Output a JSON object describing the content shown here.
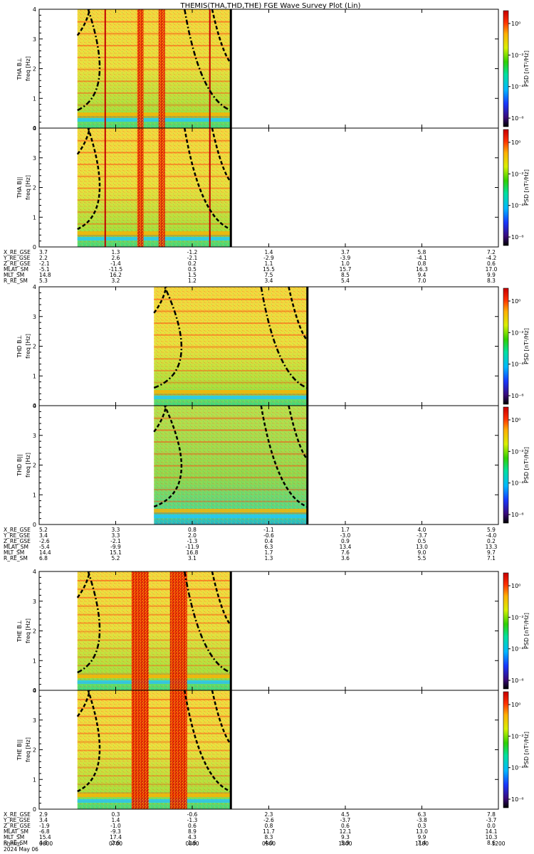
{
  "title": "THEMIS(THA,THD,THE) FGE Wave Survey Plot (Lin)",
  "chart_data": {
    "type": "heatmap",
    "date_label": "2024 May 06",
    "xlim": [
      "0600",
      "1200"
    ],
    "x_tick_labels": [
      "0600",
      "0700",
      "0800",
      "0900",
      "1000",
      "1100",
      "1200"
    ],
    "probe_blocks": [
      {
        "probe": "THA",
        "data_start": "0630",
        "data_end": "0830",
        "panels": [
          {
            "ylabel_component": "THA B⊥",
            "ylabel_unit": "freq [Hz]",
            "ylim": [
              0,
              4
            ],
            "y_ticks": [
              "0",
              "1",
              "2",
              "3",
              "4"
            ],
            "colorbar": {
              "label": "PSD [nT²/Hz]",
              "ticks": [
                "10⁰",
                "10⁻²",
                "10⁻⁴",
                "10⁻⁶"
              ]
            }
          },
          {
            "ylabel_component": "THA B||",
            "ylabel_unit": "freq [Hz]",
            "ylim": [
              0,
              4
            ],
            "y_ticks": [
              "0",
              "1",
              "2",
              "3",
              "4"
            ],
            "colorbar": {
              "label": "PSD [nT²/Hz]",
              "ticks": [
                "10⁰",
                "10⁻²",
                "10⁻⁴",
                "10⁻⁶"
              ]
            }
          }
        ],
        "ephemeris": [
          {
            "label": "X_RE_GSE",
            "values": [
              "3.7",
              "1.3",
              "-1.2",
              "1.4",
              "3.7",
              "5.8",
              "7.2"
            ]
          },
          {
            "label": "Y_RE_GSE",
            "values": [
              "2.2",
              "2.6",
              "-2.1",
              "-2.9",
              "-3.9",
              "-4.1",
              "-4.2"
            ]
          },
          {
            "label": "Z_RE_GSE",
            "values": [
              "-2.1",
              "-1.4",
              "0.2",
              "1.1",
              "1.0",
              "0.8",
              "0.6"
            ]
          },
          {
            "label": "MLAT_SM",
            "values": [
              "-5.1",
              "-11.5",
              "0.5",
              "15.5",
              "15.7",
              "16.3",
              "17.0"
            ]
          },
          {
            "label": "MLT_SM",
            "values": [
              "14.8",
              "16.2",
              "1.5",
              "7.5",
              "8.5",
              "9.4",
              "9.9"
            ]
          },
          {
            "label": "R_RE_SM",
            "values": [
              "5.3",
              "3.2",
              "1.2",
              "3.4",
              "5.4",
              "7.0",
              "8.3"
            ]
          }
        ]
      },
      {
        "probe": "THD",
        "data_start": "0730",
        "data_end": "0930",
        "panels": [
          {
            "ylabel_component": "THD B⊥",
            "ylabel_unit": "freq [Hz]",
            "ylim": [
              0,
              4
            ],
            "y_ticks": [
              "0",
              "1",
              "2",
              "3",
              "4"
            ],
            "colorbar": {
              "label": "PSD [nT²/Hz]",
              "ticks": [
                "10⁰",
                "10⁻²",
                "10⁻⁴",
                "10⁻⁶"
              ]
            }
          },
          {
            "ylabel_component": "THD B||",
            "ylabel_unit": "freq [Hz]",
            "ylim": [
              0,
              4
            ],
            "y_ticks": [
              "0",
              "1",
              "2",
              "3",
              "4"
            ],
            "colorbar": {
              "label": "PSD [nT²/Hz]",
              "ticks": [
                "10⁰",
                "10⁻²",
                "10⁻⁴",
                "10⁻⁶"
              ]
            }
          }
        ],
        "ephemeris": [
          {
            "label": "X_RE_GSE",
            "values": [
              "5.2",
              "3.3",
              "0.8",
              "-1.1",
              "1.7",
              "4.0",
              "5.9"
            ]
          },
          {
            "label": "Y_RE_GSE",
            "values": [
              "3.4",
              "3.3",
              "2.0",
              "-0.6",
              "-3.0",
              "-3.7",
              "-4.0"
            ]
          },
          {
            "label": "Z_RE_GSE",
            "values": [
              "-2.6",
              "-2.1",
              "-1.3",
              "0.4",
              "0.9",
              "0.5",
              "0.2"
            ]
          },
          {
            "label": "MLAT_SM",
            "values": [
              "-5.4",
              "-9.9",
              "-11.9",
              "6.3",
              "13.4",
              "13.0",
              "13.3"
            ]
          },
          {
            "label": "MLT_SM",
            "values": [
              "14.4",
              "15.1",
              "16.8",
              "1.7",
              "7.6",
              "9.0",
              "9.7"
            ]
          },
          {
            "label": "R_RE_SM",
            "values": [
              "6.8",
              "5.2",
              "3.1",
              "1.3",
              "3.6",
              "5.5",
              "7.1"
            ]
          }
        ]
      },
      {
        "probe": "THE",
        "data_start": "0630",
        "data_end": "0830",
        "panels": [
          {
            "ylabel_component": "THE B⊥",
            "ylabel_unit": "freq [Hz]",
            "ylim": [
              0,
              4
            ],
            "y_ticks": [
              "0",
              "1",
              "2",
              "3",
              "4"
            ],
            "colorbar": {
              "label": "PSD [nT²/Hz]",
              "ticks": [
                "10⁰",
                "10⁻²",
                "10⁻⁴",
                "10⁻⁶"
              ]
            }
          },
          {
            "ylabel_component": "THE B||",
            "ylabel_unit": "freq [Hz]",
            "ylim": [
              0,
              4
            ],
            "y_ticks": [
              "0",
              "1",
              "2",
              "3",
              "4"
            ],
            "colorbar": {
              "label": "PSD [nT²/Hz]",
              "ticks": [
                "10⁰",
                "10⁻²",
                "10⁻⁴",
                "10⁻⁶"
              ]
            }
          }
        ],
        "ephemeris": [
          {
            "label": "X_RE_GSE",
            "values": [
              "2.9",
              "0.3",
              "-0.6",
              "2.3",
              "4.5",
              "6.3",
              "7.8"
            ]
          },
          {
            "label": "Y_RE_GSE",
            "values": [
              "3.4",
              "1.4",
              "-1.3",
              "-2.6",
              "-3.7",
              "-3.8",
              "-3.7"
            ]
          },
          {
            "label": "Z_RE_GSE",
            "values": [
              "-1.9",
              "-1.0",
              "0.6",
              "0.8",
              "0.6",
              "0.3",
              "0.0"
            ]
          },
          {
            "label": "MLAT_SM",
            "values": [
              "-6.8",
              "-9.3",
              "8.9",
              "11.7",
              "12.1",
              "13.0",
              "14.1"
            ]
          },
          {
            "label": "MLT_SM",
            "values": [
              "15.4",
              "17.4",
              "4.3",
              "8.3",
              "9.3",
              "9.9",
              "10.3"
            ]
          },
          {
            "label": "R_RE_SM",
            "values": [
              "4.8",
              "2.6",
              "1.6",
              "4.0",
              "5.9",
              "7.4",
              "8.6"
            ]
          }
        ]
      }
    ],
    "hhmm_label": "hhmm"
  }
}
